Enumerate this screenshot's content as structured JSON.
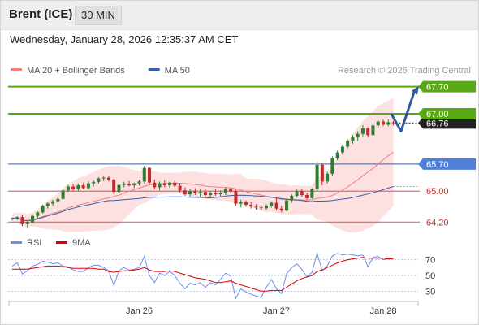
{
  "header": {
    "instrument": "Brent (ICE)",
    "timeframe": "30 MIN",
    "timestamp": "Wednesday, January 28, 2026 12:35:37 AM CET"
  },
  "colors": {
    "bullish": "#2e7d32",
    "bearish": "#c62828",
    "bollinger_band": "#fcd5d5",
    "ma20": "#f08080",
    "ma50": "#3a5fa8",
    "resistance": "#58a818",
    "pivot": "#4f7fd9",
    "support": "#e06a7a",
    "arrow": "#2f5a9a",
    "rsi": "#6b8ee8",
    "rsi_ma": "#dd0000"
  },
  "chart_data": [
    {
      "type": "candlestick",
      "legend": [
        {
          "name": "MA 20 + Bollinger Bands",
          "color": "#f08080"
        },
        {
          "name": "MA 50",
          "color": "#3a5fa8"
        }
      ],
      "legend_placement": "top-left",
      "source_note": "Research © 2026 Trading Central",
      "ylim": [
        63.85,
        68.05
      ],
      "x_ticks": [
        {
          "label": "Jan 26",
          "index": 25
        },
        {
          "label": "Jan 27",
          "index": 52
        },
        {
          "label": "Jan 28",
          "index": 73
        }
      ],
      "levels": [
        {
          "value": 67.7,
          "label": "67.70",
          "kind": "resistance",
          "style": "box"
        },
        {
          "value": 67.0,
          "label": "67.00",
          "kind": "resistance",
          "style": "box"
        },
        {
          "value": 65.7,
          "label": "65.70",
          "kind": "pivot",
          "style": "box"
        },
        {
          "value": 65.0,
          "label": "65.00",
          "kind": "support",
          "style": "text"
        },
        {
          "value": 64.2,
          "label": "64.20",
          "kind": "support",
          "style": "text"
        }
      ],
      "last_price": {
        "value": 66.76,
        "label": "66.76"
      },
      "ma50_last": 65.12,
      "forecast_arrow": [
        67.0,
        66.55,
        67.62
      ],
      "candles": [
        [
          64.28,
          64.32,
          64.24,
          64.3
        ],
        [
          64.3,
          64.35,
          64.26,
          64.33
        ],
        [
          64.33,
          64.38,
          64.1,
          64.15
        ],
        [
          64.15,
          64.25,
          64.05,
          64.2
        ],
        [
          64.2,
          64.4,
          64.18,
          64.36
        ],
        [
          64.36,
          64.48,
          64.3,
          64.45
        ],
        [
          64.45,
          64.65,
          64.42,
          64.62
        ],
        [
          64.62,
          64.72,
          64.55,
          64.68
        ],
        [
          64.68,
          64.78,
          64.62,
          64.74
        ],
        [
          64.74,
          64.85,
          64.68,
          64.8
        ],
        [
          64.8,
          65.05,
          64.78,
          65.02
        ],
        [
          65.02,
          65.16,
          64.98,
          65.12
        ],
        [
          65.12,
          65.18,
          65.0,
          65.05
        ],
        [
          65.05,
          65.2,
          65.0,
          65.15
        ],
        [
          65.15,
          65.22,
          65.05,
          65.08
        ],
        [
          65.08,
          65.25,
          65.05,
          65.2
        ],
        [
          65.2,
          65.28,
          65.12,
          65.24
        ],
        [
          65.24,
          65.36,
          65.2,
          65.33
        ],
        [
          65.33,
          65.4,
          65.26,
          65.35
        ],
        [
          65.35,
          65.38,
          65.25,
          65.3
        ],
        [
          65.3,
          65.32,
          64.92,
          64.98
        ],
        [
          64.98,
          65.2,
          64.95,
          65.16
        ],
        [
          65.16,
          65.24,
          65.1,
          65.18
        ],
        [
          65.18,
          65.26,
          65.12,
          65.15
        ],
        [
          65.15,
          65.22,
          65.08,
          65.2
        ],
        [
          65.2,
          65.3,
          65.15,
          65.25
        ],
        [
          65.25,
          65.65,
          65.2,
          65.6
        ],
        [
          65.6,
          65.62,
          65.18,
          65.22
        ],
        [
          65.22,
          65.3,
          65.05,
          65.1
        ],
        [
          65.1,
          65.25,
          65.02,
          65.2
        ],
        [
          65.2,
          65.28,
          65.1,
          65.15
        ],
        [
          65.15,
          65.24,
          65.08,
          65.22
        ],
        [
          65.22,
          65.28,
          65.1,
          65.14
        ],
        [
          65.14,
          65.2,
          64.96,
          65.02
        ],
        [
          65.02,
          65.1,
          64.88,
          64.92
        ],
        [
          64.92,
          65.05,
          64.85,
          65.0
        ],
        [
          65.0,
          65.08,
          64.9,
          64.95
        ],
        [
          64.95,
          65.05,
          64.85,
          64.98
        ],
        [
          64.98,
          65.06,
          64.86,
          64.9
        ],
        [
          64.9,
          65.0,
          64.85,
          64.95
        ],
        [
          64.95,
          65.04,
          64.88,
          64.92
        ],
        [
          64.92,
          65.02,
          64.86,
          64.96
        ],
        [
          64.96,
          65.1,
          64.9,
          65.05
        ],
        [
          65.05,
          65.08,
          64.95,
          65.0
        ],
        [
          65.0,
          65.05,
          64.62,
          64.68
        ],
        [
          64.68,
          64.78,
          64.58,
          64.72
        ],
        [
          64.72,
          64.76,
          64.6,
          64.65
        ],
        [
          64.65,
          64.72,
          64.55,
          64.6
        ],
        [
          64.6,
          64.66,
          64.52,
          64.58
        ],
        [
          64.58,
          64.64,
          64.5,
          64.56
        ],
        [
          64.56,
          64.66,
          64.52,
          64.62
        ],
        [
          64.62,
          64.74,
          64.58,
          64.7
        ],
        [
          64.7,
          64.82,
          64.5,
          64.55
        ],
        [
          64.55,
          64.62,
          64.45,
          64.5
        ],
        [
          64.5,
          64.8,
          64.48,
          64.76
        ],
        [
          64.76,
          64.92,
          64.7,
          64.88
        ],
        [
          64.88,
          65.05,
          64.84,
          65.0
        ],
        [
          65.0,
          65.06,
          64.84,
          64.9
        ],
        [
          64.9,
          64.96,
          64.78,
          64.82
        ],
        [
          64.82,
          65.08,
          64.8,
          65.05
        ],
        [
          65.05,
          65.75,
          65.0,
          65.68
        ],
        [
          65.68,
          65.72,
          65.15,
          65.25
        ],
        [
          65.25,
          65.5,
          65.2,
          65.45
        ],
        [
          65.45,
          65.9,
          65.4,
          65.85
        ],
        [
          65.85,
          66.05,
          65.8,
          66.0
        ],
        [
          66.0,
          66.2,
          65.95,
          66.15
        ],
        [
          66.15,
          66.35,
          66.1,
          66.3
        ],
        [
          66.3,
          66.45,
          66.22,
          66.4
        ],
        [
          66.4,
          66.55,
          66.3,
          66.48
        ],
        [
          66.48,
          66.7,
          66.42,
          66.62
        ],
        [
          66.62,
          66.65,
          66.4,
          66.45
        ],
        [
          66.45,
          66.78,
          66.42,
          66.7
        ],
        [
          66.7,
          66.85,
          66.62,
          66.8
        ],
        [
          66.8,
          66.85,
          66.68,
          66.72
        ],
        [
          66.72,
          66.85,
          66.68,
          66.78
        ],
        [
          66.78,
          66.82,
          66.7,
          66.76
        ]
      ]
    },
    {
      "type": "line",
      "legend": [
        {
          "name": "RSI",
          "color": "#6b8ee8"
        },
        {
          "name": "9MA",
          "color": "#dd0000"
        }
      ],
      "ylim": [
        20,
        82
      ],
      "y_ticks": [
        70,
        50,
        30
      ],
      "reference_lines": [
        70,
        50,
        30
      ],
      "rsi": [
        62,
        66,
        52,
        56,
        62,
        64,
        68,
        67,
        65,
        66,
        62,
        61,
        57,
        55,
        55,
        60,
        63,
        63,
        60,
        56,
        37,
        56,
        60,
        57,
        58,
        60,
        74,
        50,
        41,
        53,
        50,
        55,
        50,
        40,
        33,
        40,
        38,
        41,
        35,
        41,
        38,
        45,
        53,
        49,
        21,
        33,
        29,
        26,
        24,
        22,
        35,
        45,
        33,
        27,
        52,
        60,
        65,
        58,
        48,
        54,
        78,
        56,
        62,
        75,
        78,
        76,
        77,
        76,
        75,
        76,
        61,
        73,
        74,
        70,
        71,
        71
      ],
      "rsi_ma": [
        58,
        58,
        58,
        58,
        59,
        60,
        61,
        62,
        62,
        62,
        61,
        60,
        59,
        59,
        59,
        59,
        59,
        58,
        58,
        55,
        54,
        55,
        56,
        56,
        57,
        58,
        60,
        57,
        55,
        55,
        55,
        56,
        55,
        53,
        51,
        49,
        47,
        46,
        45,
        43,
        41,
        41,
        42,
        43,
        40,
        38,
        36,
        34,
        32,
        30,
        30,
        31,
        31,
        31,
        35,
        39,
        43,
        46,
        48,
        50,
        55,
        57,
        60,
        63,
        66,
        68,
        70,
        71,
        72,
        73,
        72,
        72,
        72,
        72,
        71,
        71
      ]
    }
  ]
}
